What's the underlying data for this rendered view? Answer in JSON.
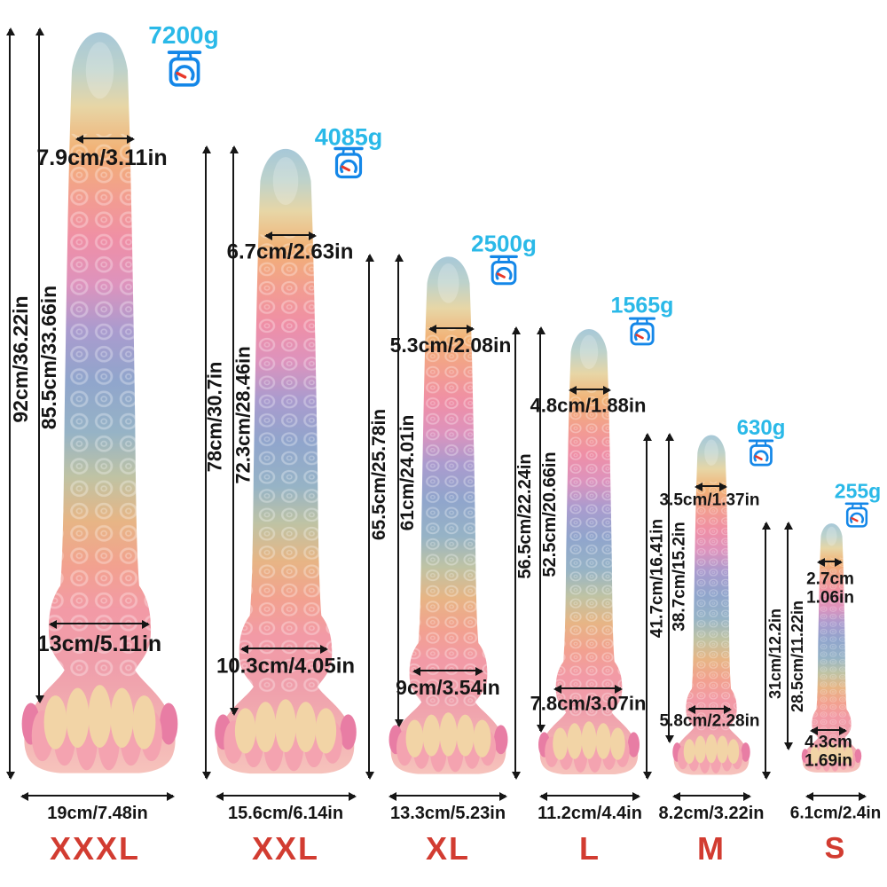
{
  "diagram": "product size comparison with measurements",
  "sizes": [
    {
      "label": "XXXL",
      "weight": "7200g",
      "total_length": "92cm/36.22in",
      "insertable_length": "85.5cm/33.66in",
      "tip_width": "7.9cm/3.11in",
      "knot_width": "13cm/5.11in",
      "base_width": "19cm/7.48in"
    },
    {
      "label": "XXL",
      "weight": "4085g",
      "total_length": "78cm/30.7in",
      "insertable_length": "72.3cm/28.46in",
      "tip_width": "6.7cm/2.63in",
      "knot_width": "10.3cm/4.05in",
      "base_width": "15.6cm/6.14in"
    },
    {
      "label": "XL",
      "weight": "2500g",
      "total_length": "65.5cm/25.78in",
      "insertable_length": "61cm/24.01in",
      "tip_width": "5.3cm/2.08in",
      "knot_width": "9cm/3.54in",
      "base_width": "13.3cm/5.23in"
    },
    {
      "label": "L",
      "weight": "1565g",
      "total_length": "56.5cm/22.24in",
      "insertable_length": "52.5cm/20.66in",
      "tip_width": "4.8cm/1.88in",
      "knot_width": "7.8cm/3.07in",
      "base_width": "11.2cm/4.4in"
    },
    {
      "label": "M",
      "weight": "630g",
      "total_length": "41.7cm/16.41in",
      "insertable_length": "38.7cm/15.2in",
      "tip_width": "3.5cm/1.37in",
      "knot_width": "5.8cm/2.28in",
      "base_width": "8.2cm/3.22in"
    },
    {
      "label": "S",
      "weight": "255g",
      "total_length": "31cm/12.2in",
      "insertable_length": "28.5cm/11.22in",
      "tip_width": "2.7cm/1.06in",
      "knot_width": "4.3cm/1.69in",
      "base_width": "6.1cm/2.4in"
    }
  ],
  "palette": {
    "background": "#ffffff",
    "weight_text": "#2ab9e8",
    "scale_icon_stroke": "#1487e8",
    "scale_needle": "#e8382a",
    "size_label": "#d23c31",
    "measurement_text": "#151515"
  }
}
